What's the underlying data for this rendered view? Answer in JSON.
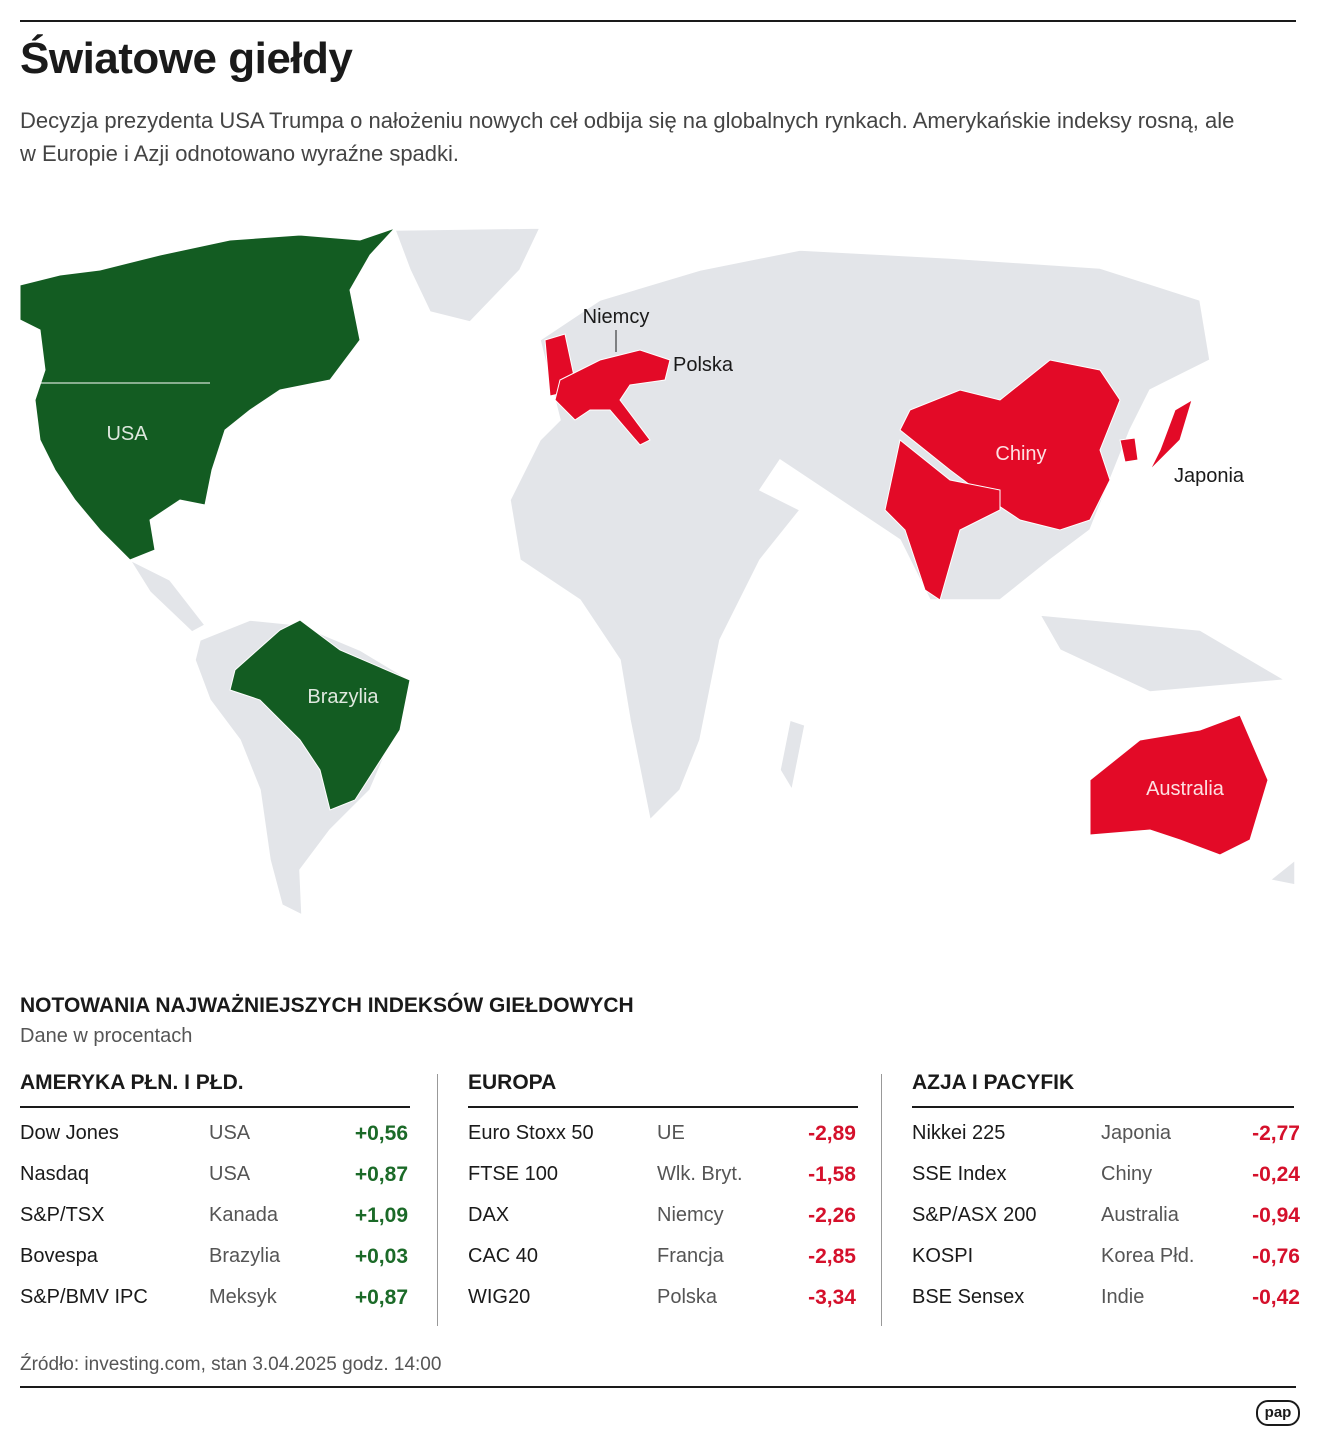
{
  "header": {
    "title": "Światowe giełdy",
    "subtitle": "Decyzja prezydenta USA Trumpa o nałożeniu nowych ceł odbija się na globalnych rynkach. Amerykańskie indeksy rosną, ale w Europie i Azji odnotowano wyraźne spadki."
  },
  "map": {
    "labels": [
      "USA",
      "Brazylia",
      "Niemcy",
      "Polska",
      "Chiny",
      "Japonia",
      "Australia"
    ]
  },
  "table": {
    "title": "NOTOWANIA NAJWAŻNIEJSZYCH INDEKSÓW GIEŁDOWYCH",
    "note": "Dane w procentach",
    "groups": [
      {
        "name": "AMERYKA PŁN. I PŁD.",
        "color": "#1b6a28",
        "rows": [
          [
            "Dow Jones",
            "USA",
            "+0,56"
          ],
          [
            "Nasdaq",
            "USA",
            "+0,87"
          ],
          [
            "S&P/TSX",
            "Kanada",
            "+1,09"
          ],
          [
            "Bovespa",
            "Brazylia",
            "+0,03"
          ],
          [
            "S&P/BMV IPC",
            "Meksyk",
            "+0,87"
          ]
        ]
      },
      {
        "name": "EUROPA",
        "color": "#d5102b",
        "rows": [
          [
            "Euro Stoxx 50",
            "UE",
            "-2,89"
          ],
          [
            "FTSE 100",
            "Wlk. Bryt.",
            "-1,58"
          ],
          [
            "DAX",
            "Niemcy",
            "-2,26"
          ],
          [
            "CAC 40",
            "Francja",
            "-2,85"
          ],
          [
            "WIG20",
            "Polska",
            "-3,34"
          ]
        ]
      },
      {
        "name": "AZJA I PACYFIK",
        "color": "#d5102b",
        "rows": [
          [
            "Nikkei 225",
            "Japonia",
            "-2,77"
          ],
          [
            "SSE Index",
            "Chiny",
            "-0,24"
          ],
          [
            "S&P/ASX 200",
            "Australia",
            "-0,94"
          ],
          [
            "KOSPI",
            "Korea Płd.",
            "-0,76"
          ],
          [
            "BSE Sensex",
            "Indie",
            "-0,42"
          ]
        ]
      }
    ]
  },
  "source": "Źródło: investing.com, stan 3.04.2025 godz. 14:00",
  "logo": "pap"
}
